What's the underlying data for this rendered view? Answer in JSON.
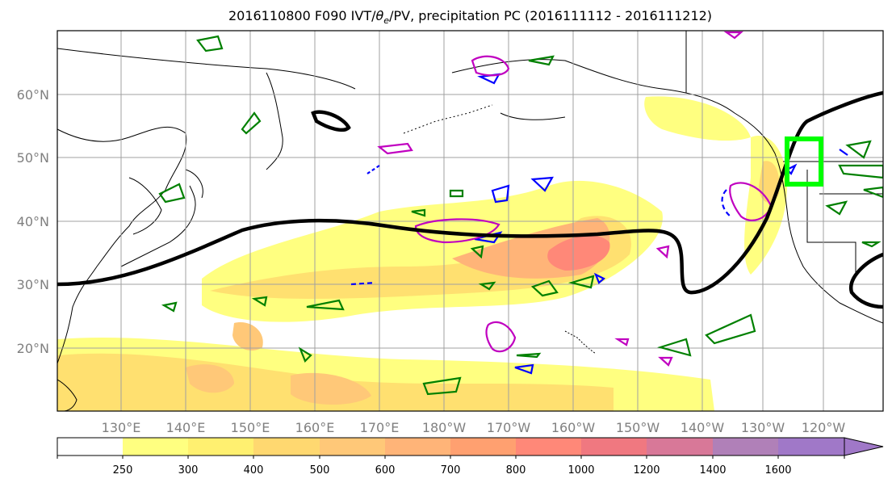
{
  "title_main": "2016110800 F090 IVT/",
  "title_theta": "θ",
  "title_sub": "e",
  "title_rest": "/PV, precipitation PC (2016111112 - 2016111212)",
  "map": {
    "lon_labels": [
      "130°E",
      "140°E",
      "150°E",
      "160°E",
      "170°E",
      "180°W",
      "170°W",
      "160°W",
      "150°W",
      "140°W",
      "130°W",
      "120°W"
    ],
    "lat_labels": [
      "60°N",
      "50°N",
      "40°N",
      "30°N",
      "20°N"
    ],
    "grid": true,
    "colors": {
      "coastline": "#000000",
      "ivt_contour": "#000000",
      "highlight_box": "#00ff00",
      "pv_green": "#008000",
      "pv_blue": "#0000ff",
      "pv_magenta": "#c000c0"
    }
  },
  "colorbar": {
    "levels": [
      "250",
      "300",
      "400",
      "500",
      "600",
      "700",
      "800",
      "1000",
      "1200",
      "1400",
      "1600"
    ],
    "colors": [
      "#ffffff",
      "#ffff80",
      "#fff070",
      "#ffd870",
      "#ffc878",
      "#ffb478",
      "#ffa070",
      "#ff8878",
      "#f07880",
      "#d87898",
      "#b080b8",
      "#a078c8"
    ]
  }
}
